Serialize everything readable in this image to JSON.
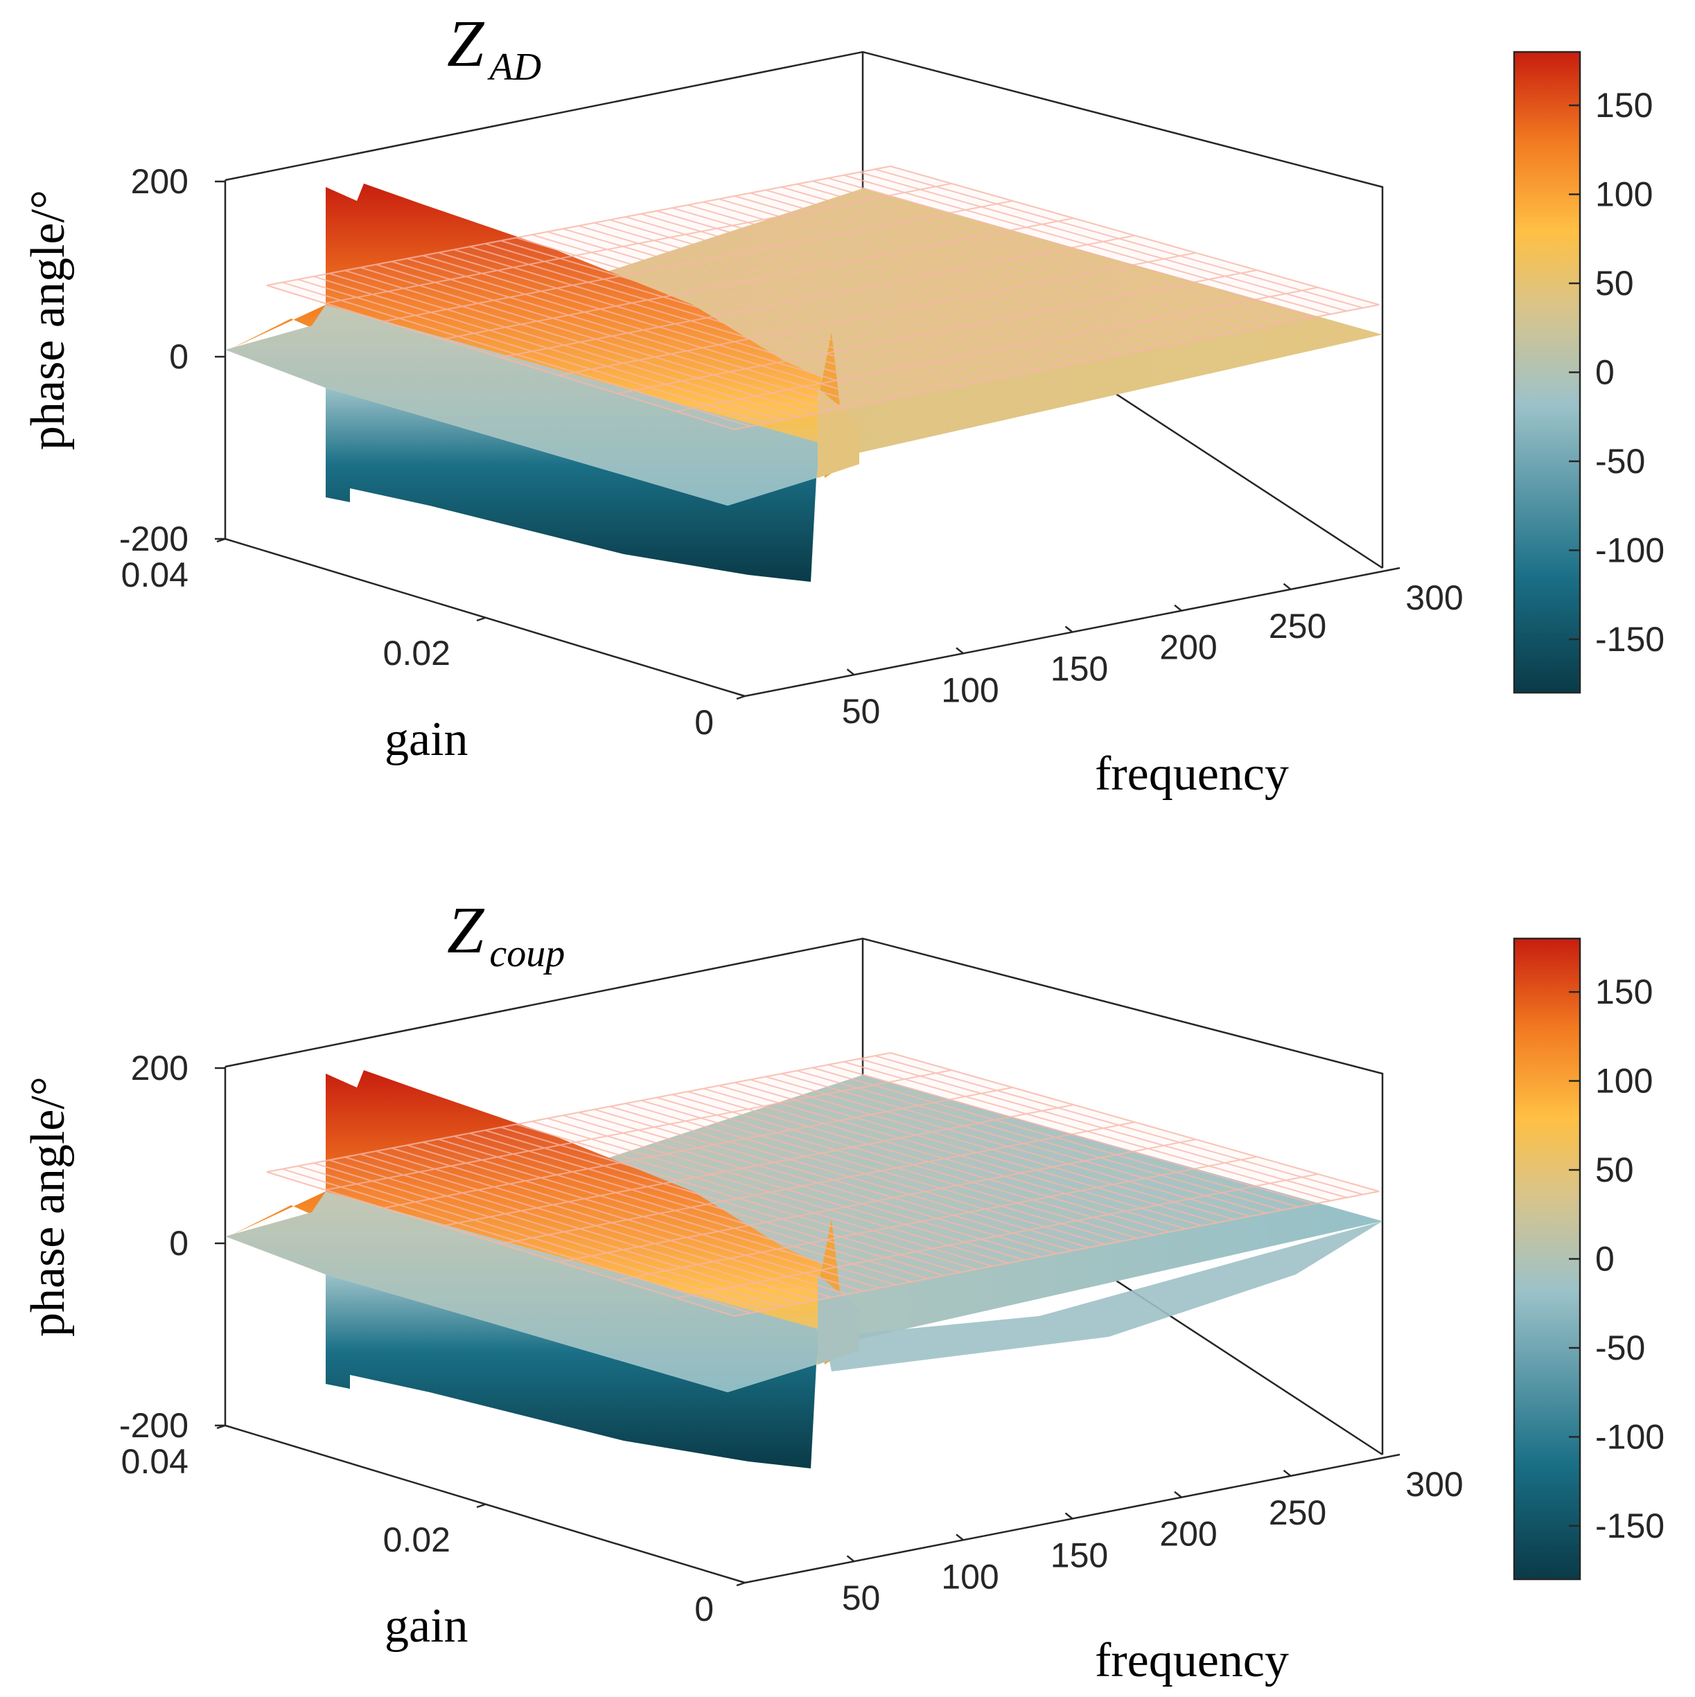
{
  "colors": {
    "colormap": [
      "#0a3a47",
      "#1a6f86",
      "#9cc2c9",
      "#d9c48a",
      "#ffc044",
      "#f27a21",
      "#c81e0f"
    ],
    "plane_grid": "#f7b7a8",
    "axis": "#262626"
  },
  "chart_data": [
    {
      "type": "surface",
      "title_main": "Z",
      "title_sub": "AD",
      "zlabel": "phase angle/°",
      "xlabel": "frequency",
      "ylabel": "gain",
      "zticks": [
        "200",
        "0",
        "-200"
      ],
      "zlim": [
        -200,
        200
      ],
      "yticks": [
        "0.04",
        "0.02",
        "0"
      ],
      "ylim": [
        0,
        0.04
      ],
      "xticks": [
        "50",
        "100",
        "150",
        "200",
        "250",
        "300"
      ],
      "xlim": [
        0,
        300
      ],
      "colorbar": {
        "ticks": [
          "150",
          "100",
          "50",
          "0",
          "-50",
          "-100",
          "-150"
        ],
        "range": [
          -180,
          180
        ]
      },
      "reference_plane_z": 60,
      "ridge_near_frequency": 50,
      "ridge_peak": 175,
      "ridge_trough": -170,
      "flat_region_value": 45
    },
    {
      "type": "surface",
      "title_main": "Z",
      "title_sub": "coup",
      "zlabel": "phase angle/°",
      "xlabel": "frequency",
      "ylabel": "gain",
      "zticks": [
        "200",
        "0",
        "-200"
      ],
      "zlim": [
        -200,
        200
      ],
      "yticks": [
        "0.04",
        "0.02",
        "0"
      ],
      "ylim": [
        0,
        0.04
      ],
      "xticks": [
        "50",
        "100",
        "150",
        "200",
        "250",
        "300"
      ],
      "xlim": [
        0,
        300
      ],
      "colorbar": {
        "ticks": [
          "150",
          "100",
          "50",
          "0",
          "-50",
          "-100",
          "-150"
        ],
        "range": [
          -180,
          180
        ]
      },
      "reference_plane_z": 60,
      "ridge_near_frequency": 50,
      "ridge_peak": 175,
      "ridge_trough": -175,
      "flat_region_value": -15
    }
  ]
}
